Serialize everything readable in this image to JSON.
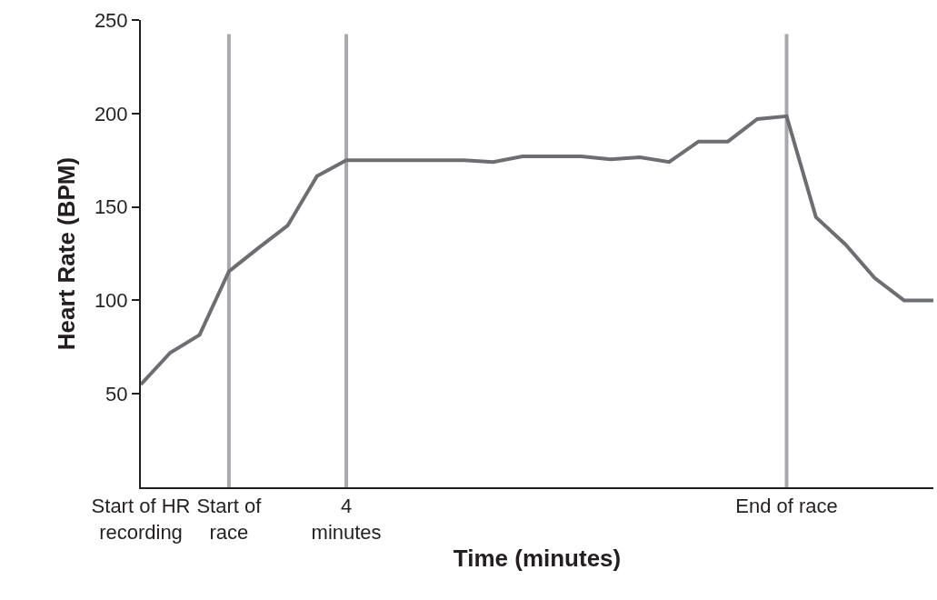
{
  "chart_data": {
    "type": "line",
    "xlabel": "Time (minutes)",
    "ylabel": "Heart Rate (BPM)",
    "categories": [
      "Start of HR\nrecording",
      null,
      null,
      "Start of\nrace",
      null,
      null,
      null,
      "4\nminutes",
      null,
      null,
      null,
      null,
      null,
      null,
      null,
      null,
      null,
      null,
      null,
      null,
      null,
      null,
      "End of race",
      null,
      null,
      null,
      null,
      null
    ],
    "series": [
      {
        "color": "#6d6e71",
        "values": [
          55,
          72,
          81.5,
          115.5,
          128,
          140,
          166.5,
          175,
          175,
          175,
          175,
          175,
          174,
          177,
          177,
          177,
          175.5,
          176.5,
          174,
          185,
          185,
          197,
          198.5,
          144.5,
          130,
          112,
          100,
          100
        ]
      }
    ],
    "ylim": [
      0,
      250
    ],
    "yticks": [
      50,
      100,
      150,
      200,
      250
    ],
    "marker": "none",
    "line_style": "solid",
    "ref_lines": [
      {
        "axis": "x",
        "value": "Start of\nrace",
        "label": null,
        "color": "#a7a9ac"
      },
      {
        "axis": "x",
        "value": "4\nminutes",
        "label": null,
        "color": "#a7a9ac"
      },
      {
        "axis": "x",
        "value": "End of race",
        "label": null,
        "color": "#a7a9ac"
      }
    ]
  }
}
